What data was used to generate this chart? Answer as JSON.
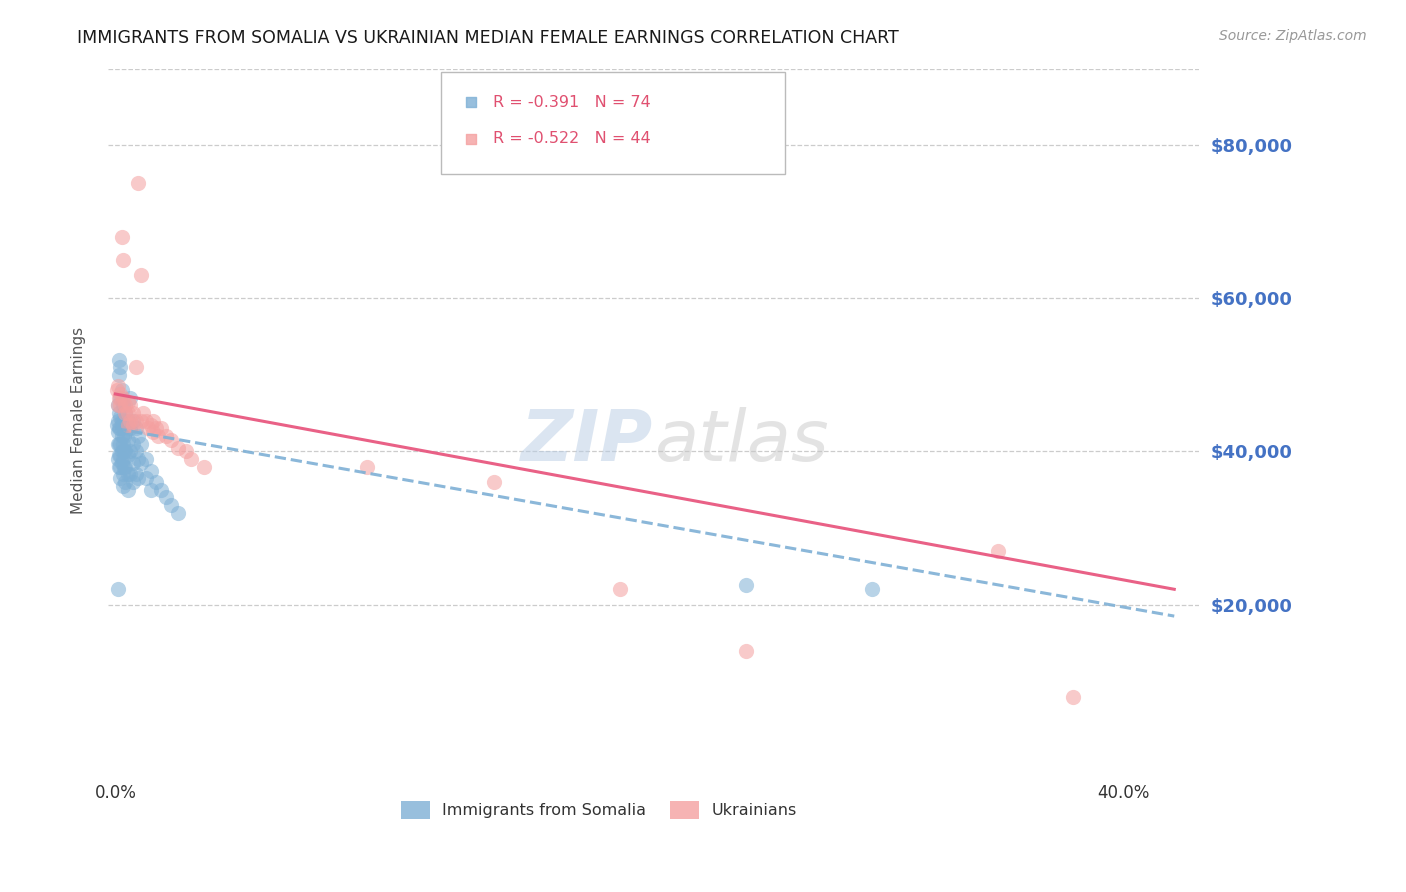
{
  "title": "IMMIGRANTS FROM SOMALIA VS UKRAINIAN MEDIAN FEMALE EARNINGS CORRELATION CHART",
  "source": "Source: ZipAtlas.com",
  "ylabel": "Median Female Earnings",
  "xlabel_ticks": [
    "0.0%",
    "",
    "",
    "",
    "40.0%"
  ],
  "xlabel_vals": [
    0.0,
    0.1,
    0.2,
    0.3,
    0.4
  ],
  "ytick_vals": [
    0,
    20000,
    40000,
    60000,
    80000
  ],
  "ytick_labels": [
    "",
    "$20,000",
    "$40,000",
    "$60,000",
    "$80,000"
  ],
  "ylim": [
    -2000,
    90000
  ],
  "xlim": [
    -0.003,
    0.43
  ],
  "watermark_zip": "ZIP",
  "watermark_atlas": "atlas",
  "legend_entries": [
    {
      "label": "Immigrants from Somalia",
      "R": "-0.391",
      "N": "74",
      "color": "#7EB0D5"
    },
    {
      "label": "Ukrainians",
      "R": "-0.522",
      "N": "44",
      "color": "#F4A0A0"
    }
  ],
  "somalia_scatter": [
    [
      0.0005,
      43500
    ],
    [
      0.001,
      46000
    ],
    [
      0.001,
      44000
    ],
    [
      0.001,
      42500
    ],
    [
      0.001,
      41000
    ],
    [
      0.001,
      39000
    ],
    [
      0.0015,
      52000
    ],
    [
      0.0015,
      50000
    ],
    [
      0.0015,
      45000
    ],
    [
      0.0015,
      43000
    ],
    [
      0.0015,
      41000
    ],
    [
      0.0015,
      39500
    ],
    [
      0.0015,
      38000
    ],
    [
      0.002,
      51000
    ],
    [
      0.002,
      47000
    ],
    [
      0.002,
      44500
    ],
    [
      0.002,
      43000
    ],
    [
      0.002,
      41000
    ],
    [
      0.002,
      39500
    ],
    [
      0.002,
      38000
    ],
    [
      0.002,
      36500
    ],
    [
      0.0025,
      48000
    ],
    [
      0.0025,
      44000
    ],
    [
      0.0025,
      42000
    ],
    [
      0.0025,
      40000
    ],
    [
      0.0025,
      38500
    ],
    [
      0.003,
      46000
    ],
    [
      0.003,
      43500
    ],
    [
      0.003,
      41000
    ],
    [
      0.003,
      39000
    ],
    [
      0.003,
      37000
    ],
    [
      0.003,
      35500
    ],
    [
      0.0035,
      44000
    ],
    [
      0.0035,
      42000
    ],
    [
      0.0035,
      40000
    ],
    [
      0.0035,
      38000
    ],
    [
      0.004,
      45000
    ],
    [
      0.004,
      42500
    ],
    [
      0.004,
      40000
    ],
    [
      0.004,
      38000
    ],
    [
      0.004,
      36000
    ],
    [
      0.005,
      44000
    ],
    [
      0.005,
      41500
    ],
    [
      0.005,
      39500
    ],
    [
      0.005,
      37000
    ],
    [
      0.005,
      35000
    ],
    [
      0.006,
      47000
    ],
    [
      0.006,
      43000
    ],
    [
      0.006,
      40000
    ],
    [
      0.006,
      37000
    ],
    [
      0.007,
      44000
    ],
    [
      0.007,
      41000
    ],
    [
      0.007,
      38500
    ],
    [
      0.007,
      36000
    ],
    [
      0.008,
      43000
    ],
    [
      0.008,
      40000
    ],
    [
      0.008,
      37000
    ],
    [
      0.009,
      42000
    ],
    [
      0.009,
      39000
    ],
    [
      0.009,
      36500
    ],
    [
      0.01,
      41000
    ],
    [
      0.01,
      38500
    ],
    [
      0.012,
      39000
    ],
    [
      0.012,
      36500
    ],
    [
      0.014,
      37500
    ],
    [
      0.014,
      35000
    ],
    [
      0.016,
      36000
    ],
    [
      0.018,
      35000
    ],
    [
      0.02,
      34000
    ],
    [
      0.022,
      33000
    ],
    [
      0.025,
      32000
    ],
    [
      0.001,
      22000
    ],
    [
      0.25,
      22500
    ],
    [
      0.3,
      22000
    ]
  ],
  "ukrainian_scatter": [
    [
      0.0005,
      48000
    ],
    [
      0.001,
      48500
    ],
    [
      0.0015,
      47000
    ],
    [
      0.001,
      46000
    ],
    [
      0.002,
      47500
    ],
    [
      0.002,
      46000
    ],
    [
      0.0025,
      68000
    ],
    [
      0.003,
      65000
    ],
    [
      0.003,
      47000
    ],
    [
      0.004,
      46000
    ],
    [
      0.004,
      45000
    ],
    [
      0.005,
      46500
    ],
    [
      0.005,
      45000
    ],
    [
      0.005,
      43500
    ],
    [
      0.006,
      46000
    ],
    [
      0.006,
      44000
    ],
    [
      0.007,
      45000
    ],
    [
      0.007,
      43500
    ],
    [
      0.008,
      51000
    ],
    [
      0.008,
      44000
    ],
    [
      0.009,
      75000
    ],
    [
      0.01,
      63000
    ],
    [
      0.01,
      44000
    ],
    [
      0.011,
      45000
    ],
    [
      0.012,
      44000
    ],
    [
      0.013,
      43000
    ],
    [
      0.014,
      43500
    ],
    [
      0.015,
      44000
    ],
    [
      0.015,
      42500
    ],
    [
      0.016,
      43000
    ],
    [
      0.017,
      42000
    ],
    [
      0.018,
      43000
    ],
    [
      0.02,
      42000
    ],
    [
      0.022,
      41500
    ],
    [
      0.025,
      40500
    ],
    [
      0.028,
      40000
    ],
    [
      0.03,
      39000
    ],
    [
      0.035,
      38000
    ],
    [
      0.1,
      38000
    ],
    [
      0.15,
      36000
    ],
    [
      0.2,
      22000
    ],
    [
      0.25,
      14000
    ],
    [
      0.35,
      27000
    ],
    [
      0.38,
      8000
    ]
  ],
  "somalia_trendline": [
    0.0,
    43000,
    0.42,
    18500
  ],
  "ukrainian_trendline": [
    0.0,
    47500,
    0.42,
    22000
  ],
  "background_color": "#FFFFFF",
  "grid_color": "#CCCCCC",
  "scatter_size": 120,
  "scatter_alpha": 0.55,
  "trendline_lw": 2.2,
  "title_color": "#1a1a1a",
  "title_fontsize": 12.5,
  "ylabel_color": "#555555",
  "ylabel_fontsize": 11,
  "ytick_color": "#4472C4",
  "xtick_color": "#333333",
  "source_color": "#999999",
  "source_fontsize": 10
}
